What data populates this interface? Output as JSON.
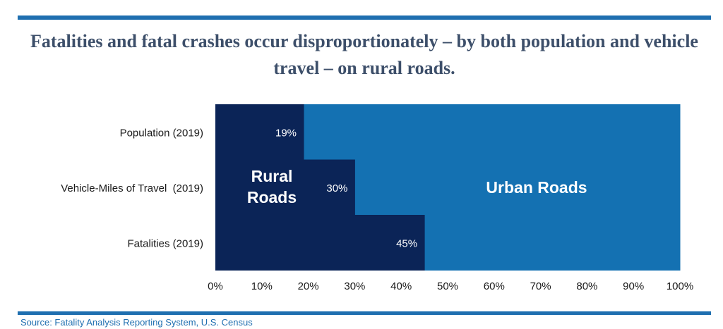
{
  "title": "Fatalities and fatal crashes occur disproportionately – by both population and vehicle travel – on rural roads.",
  "source": "Source: Fatality Analysis Reporting System, U.S. Census",
  "chart_data": {
    "type": "bar",
    "orientation": "horizontal",
    "stacked": true,
    "categories": [
      "Population (2019)",
      "Vehicle-Miles of Travel  (2019)",
      "Fatalities (2019)"
    ],
    "series": [
      {
        "name": "Rural Roads",
        "label_lines": [
          "Rural",
          "Roads"
        ],
        "values": [
          19,
          30,
          45
        ],
        "value_labels": [
          "19%",
          "30%",
          "45%"
        ],
        "color": "#0b2457"
      },
      {
        "name": "Urban Roads",
        "values": [
          81,
          70,
          55
        ],
        "color": "#1471b2"
      }
    ],
    "xlim": [
      0,
      100
    ],
    "x_ticks": [
      "0%",
      "10%",
      "20%",
      "30%",
      "40%",
      "50%",
      "60%",
      "70%",
      "80%",
      "90%",
      "100%"
    ],
    "grid": false,
    "legend": "none (series labeled inside bars)"
  }
}
